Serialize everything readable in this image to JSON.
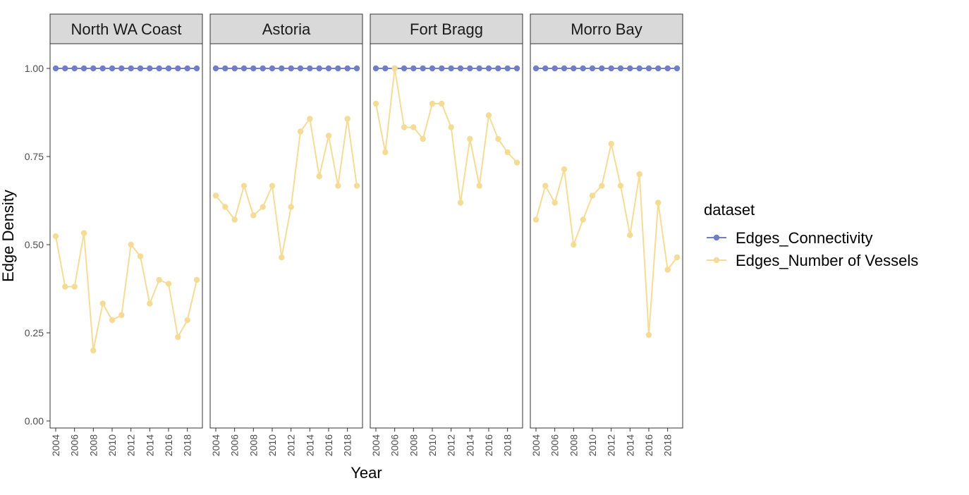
{
  "chart_data": {
    "type": "line",
    "xlabel": "Year",
    "ylabel": "Edge Density",
    "ylim": [
      -0.02,
      1.07
    ],
    "yticks": [
      0.0,
      0.25,
      0.5,
      0.75,
      1.0
    ],
    "ytick_labels": [
      "0.00",
      "0.25",
      "0.50",
      "0.75",
      "1.00"
    ],
    "xticks": [
      2004,
      2006,
      2008,
      2010,
      2012,
      2014,
      2016,
      2018
    ],
    "xtick_labels": [
      "2004",
      "2006",
      "2008",
      "2010",
      "2012",
      "2014",
      "2016",
      "2018"
    ],
    "grid": false,
    "legend": {
      "title": "dataset",
      "placement": "right",
      "entries": [
        "Edges_Connectivity",
        "Edges_Number of Vessels"
      ]
    },
    "colors": {
      "Edges_Connectivity": "#6f7ec6",
      "Edges_Number of Vessels": "#f5dc96"
    },
    "x": [
      2004,
      2005,
      2006,
      2007,
      2008,
      2009,
      2010,
      2011,
      2012,
      2013,
      2014,
      2015,
      2016,
      2017,
      2018,
      2019
    ],
    "panels": [
      {
        "title": "North WA Coast",
        "series": [
          {
            "name": "Edges_Connectivity",
            "values": [
              1,
              1,
              1,
              1,
              1,
              1,
              1,
              1,
              1,
              1,
              1,
              1,
              1,
              1,
              1,
              1
            ]
          },
          {
            "name": "Edges_Number of Vessels",
            "values": [
              0.524,
              0.381,
              0.381,
              0.533,
              0.2,
              0.333,
              0.286,
              0.3,
              0.5,
              0.467,
              0.333,
              0.4,
              0.389,
              0.238,
              0.286,
              0.4
            ]
          }
        ]
      },
      {
        "title": "Astoria",
        "series": [
          {
            "name": "Edges_Connectivity",
            "values": [
              1,
              1,
              1,
              1,
              1,
              1,
              1,
              1,
              1,
              1,
              1,
              1,
              1,
              1,
              1,
              1
            ]
          },
          {
            "name": "Edges_Number of Vessels",
            "values": [
              0.639,
              0.607,
              0.571,
              0.667,
              0.583,
              0.607,
              0.667,
              0.464,
              0.607,
              0.821,
              0.857,
              0.694,
              0.809,
              0.667,
              0.857,
              0.667
            ]
          }
        ]
      },
      {
        "title": "Fort Bragg",
        "series": [
          {
            "name": "Edges_Connectivity",
            "values": [
              1,
              1,
              1,
              1,
              1,
              1,
              1,
              1,
              1,
              1,
              1,
              1,
              1,
              1,
              1,
              1
            ]
          },
          {
            "name": "Edges_Number of Vessels",
            "values": [
              0.9,
              0.762,
              1.0,
              0.833,
              0.833,
              0.8,
              0.9,
              0.9,
              0.833,
              0.619,
              0.8,
              0.667,
              0.867,
              0.8,
              0.762,
              0.733
            ]
          }
        ]
      },
      {
        "title": "Morro Bay",
        "series": [
          {
            "name": "Edges_Connectivity",
            "values": [
              1,
              1,
              1,
              1,
              1,
              1,
              1,
              1,
              1,
              1,
              1,
              1,
              1,
              1,
              1,
              1
            ]
          },
          {
            "name": "Edges_Number of Vessels",
            "values": [
              0.571,
              0.667,
              0.619,
              0.714,
              0.5,
              0.571,
              0.639,
              0.667,
              0.786,
              0.667,
              0.527,
              0.7,
              0.244,
              0.619,
              0.429,
              0.464
            ]
          }
        ]
      }
    ]
  }
}
